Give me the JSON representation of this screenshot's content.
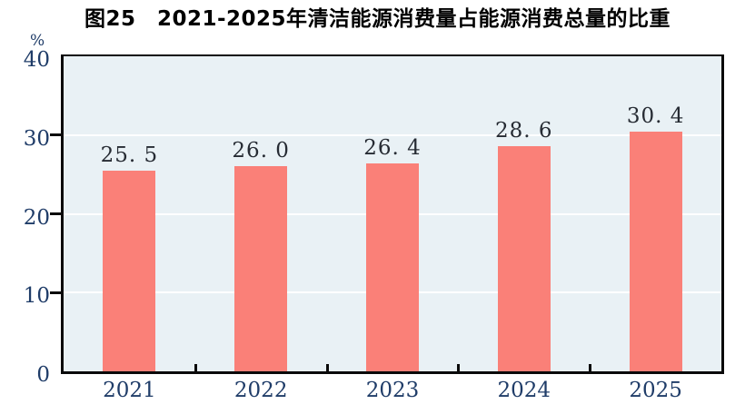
{
  "header": {
    "title": "图25　2021-2025年清洁能源消费量占能源消费总量的比重",
    "unit_label": "%"
  },
  "colors": {
    "bar": "#FA8078",
    "plot_background": "#E9F1F5",
    "gridline": "#FFFFFF",
    "axis_frame": "#0A0A0A",
    "axis_label": "#1F3C68",
    "data_label": "#262B33",
    "title": "#000000",
    "page_background": "#FFFFFF"
  },
  "chart_data": {
    "type": "bar",
    "title": "图25　2021-2025年清洁能源消费量占能源消费总量的比重",
    "categories": [
      "2021",
      "2022",
      "2023",
      "2024",
      "2025"
    ],
    "values": [
      25.5,
      26.0,
      26.4,
      28.6,
      30.4
    ],
    "bar_labels": [
      "25. 5",
      "26. 0",
      "26. 4",
      "28. 6",
      "30. 4"
    ],
    "xlabel": "",
    "ylabel": "%",
    "ylim": [
      0,
      40
    ],
    "yticks": [
      0,
      10,
      20,
      30,
      40
    ],
    "grid": "horizontal-white-lines",
    "legend_position": "none"
  }
}
